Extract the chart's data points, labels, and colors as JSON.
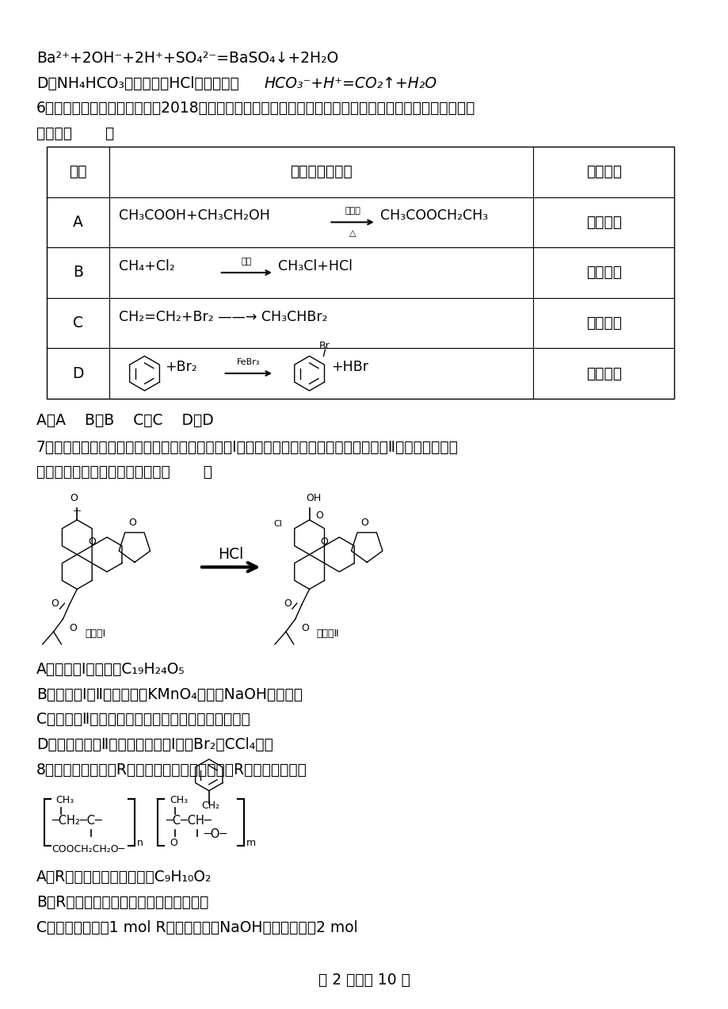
{
  "bg_color": "#ffffff",
  "page_width": 9.2,
  "page_height": 12.73,
  "fs": 11.5,
  "fs_small": 9.0,
  "fs_tiny": 7.0,
  "line1": "Ba²⁺+2OH⁻+2H⁺+SO₄²⁻=BaSO₄↓+2H₂O",
  "line2_pre": "D．NH₄HCO₃溶液与过量HCl溶液混合：",
  "line2_eq": "HCO₃⁻+H⁺=CO₂↑+H₂O",
  "line3": "6．【黑龙江省大庆市第十中剦2018届高三第一次教学质量检测】下列有机化学反应方程式及反应类型均正",
  "line4": "确的是（       ）",
  "th_xuanxiang": "选项",
  "th_huaxue": "化学反应方程式",
  "th_fanyingleixing": "反应类型",
  "row_A": "A",
  "row_B": "B",
  "row_C": "C",
  "row_D": "D",
  "rxn_A": "CH₃COOH+CH₃CH₂OH",
  "rxn_A2": "CH₃COOCH₂CH₃",
  "rxn_A_cat": "浓硫酸",
  "rxn_A_delta": "△",
  "rxn_A_type": "酯化反应",
  "rxn_B": "CH₄+Cl₂",
  "rxn_B2": "CH₃Cl+HCl",
  "rxn_B_cat": "光照",
  "rxn_B_type": "置换反应",
  "rxn_C": "CH₂=CH₂+Br₂─→CH₃CHBr₂",
  "rxn_C_type": "加成反应",
  "rxn_D_pre": "+Br₂",
  "rxn_D_cat": "FeBr₃",
  "rxn_D_post": "+HBr",
  "rxn_D_type": "取代反应",
  "ans_line": "A．A    B．B    C．C    D．D",
  "q7_line1": "7．我国科研人员以传统中药为原料先制得化合物Ⅰ，再转化为具有抗癌抑菌活性的化合物Ⅱ，有关转化如图",
  "q7_line2": "所示，下列有关说法不正确的是（       ）",
  "label_cpd1": "化合物Ⅰ",
  "label_cpd2": "化合物Ⅱ",
  "hcl_label": "HCl",
  "q7A": "A．化合物Ⅰ分子式为C₁₉H₂₄O₅",
  "q7B": "B．化合物Ⅰ和Ⅱ均能与酸性KMnO₄溶液和NaOH溶液反应",
  "q7C": "C．化合物Ⅱ一定条件下能发生取代、消去及加成反应",
  "q7D": "D．检验化合物Ⅱ中是否含化合物Ⅰ可用Br₂的CCl₄溶液",
  "q8_line": "8．某高分子化合物R的结构简式如图，下列有关R的说法正确的是",
  "q8A": "A．R的单体之一的分子式为C₉H₁₀O₂",
  "q8B": "B．R完全水解后生成物均为小分子有机物",
  "q8C": "C．碱性条件下，1 mol R完全水解消耗NaOH的物质的量为2 mol",
  "footer": "第 2 页，共 10 页"
}
